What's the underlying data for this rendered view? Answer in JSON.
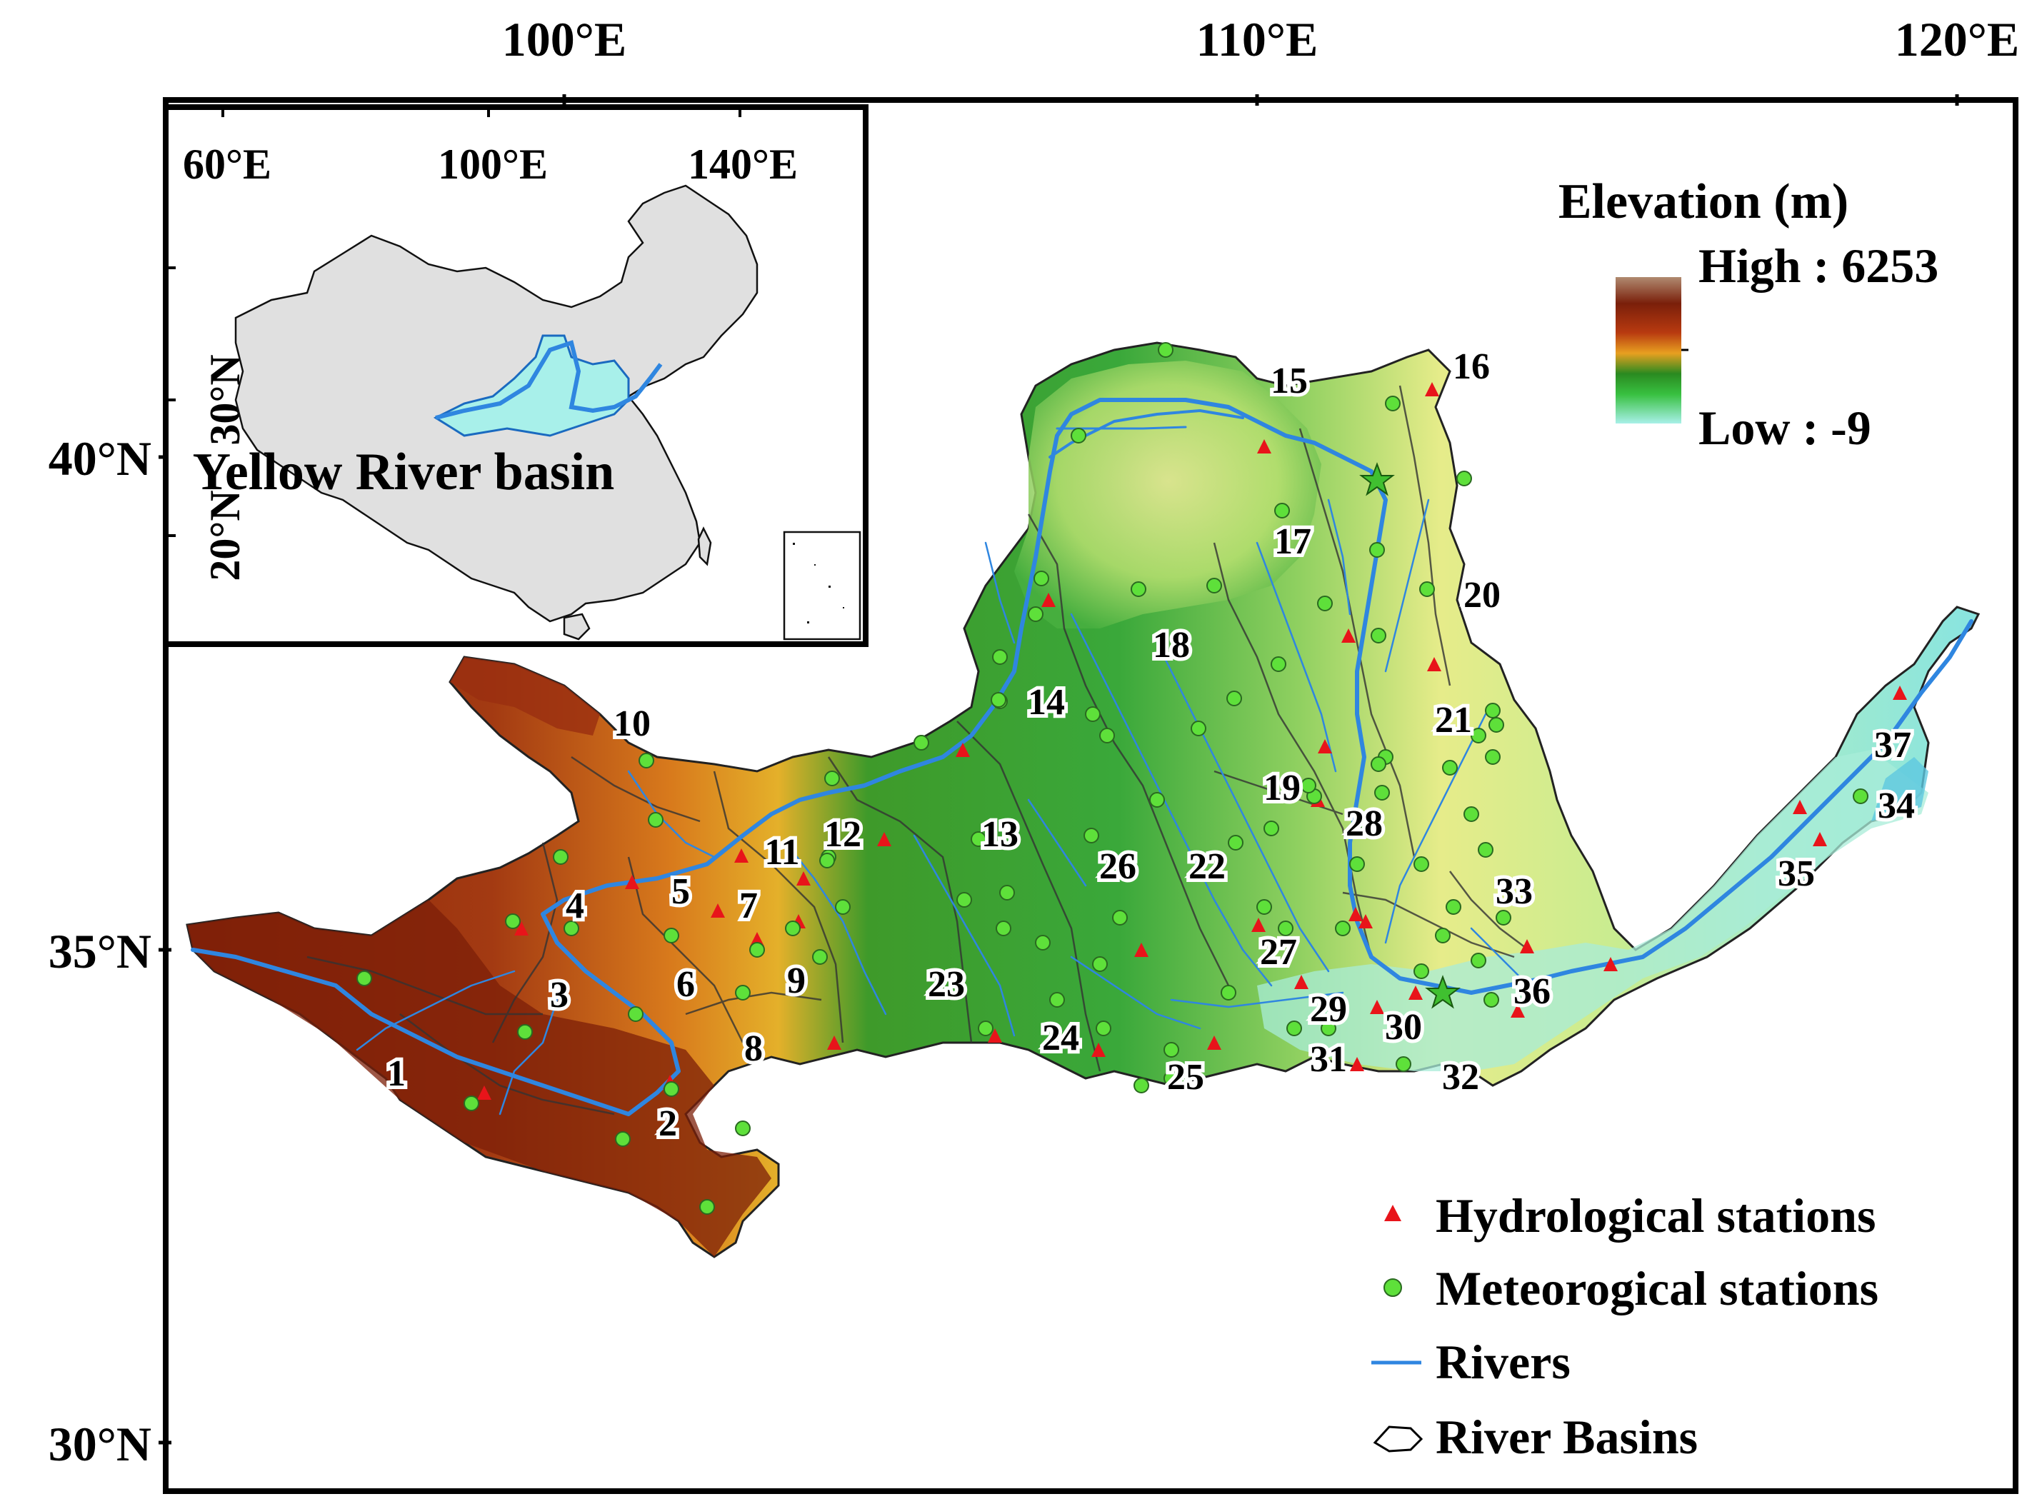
{
  "axes": {
    "top_ticks": [
      "100°E",
      "110°E",
      "120°E"
    ],
    "left_ticks": [
      "40°N",
      "35°N",
      "30°N"
    ]
  },
  "inset": {
    "top_ticks": [
      "60°E",
      "100°E",
      "140°E"
    ],
    "left_ticks": [
      "30°N",
      "20°N"
    ],
    "label": "Yellow River basin"
  },
  "legend": {
    "elevation_title": "Elevation (m)",
    "high_label": "High : 6253",
    "low_label": "Low : -9",
    "items": [
      {
        "label": "Hydrological stations",
        "symbol": "red-triangle"
      },
      {
        "label": "Meteorogical stations",
        "symbol": "green-circle"
      },
      {
        "label": "Rivers",
        "symbol": "blue-line"
      },
      {
        "label": "River Basins",
        "symbol": "basin-outline"
      }
    ]
  },
  "colors": {
    "hydro_station": "#e8141a",
    "met_station": "#5ee03a",
    "river": "#2f86e0",
    "high_elev": "#8a2b0e",
    "mid_elev": "#2fa83a",
    "low_elev": "#9ef0e0",
    "china_fill": "#e0e0e0"
  },
  "basins": [
    "1",
    "2",
    "3",
    "4",
    "5",
    "6",
    "7",
    "8",
    "9",
    "10",
    "11",
    "12",
    "13",
    "14",
    "15",
    "16",
    "17",
    "18",
    "19",
    "20",
    "21",
    "22",
    "23",
    "24",
    "25",
    "26",
    "27",
    "28",
    "29",
    "30",
    "31",
    "32",
    "33",
    "34",
    "35",
    "36",
    "37"
  ]
}
